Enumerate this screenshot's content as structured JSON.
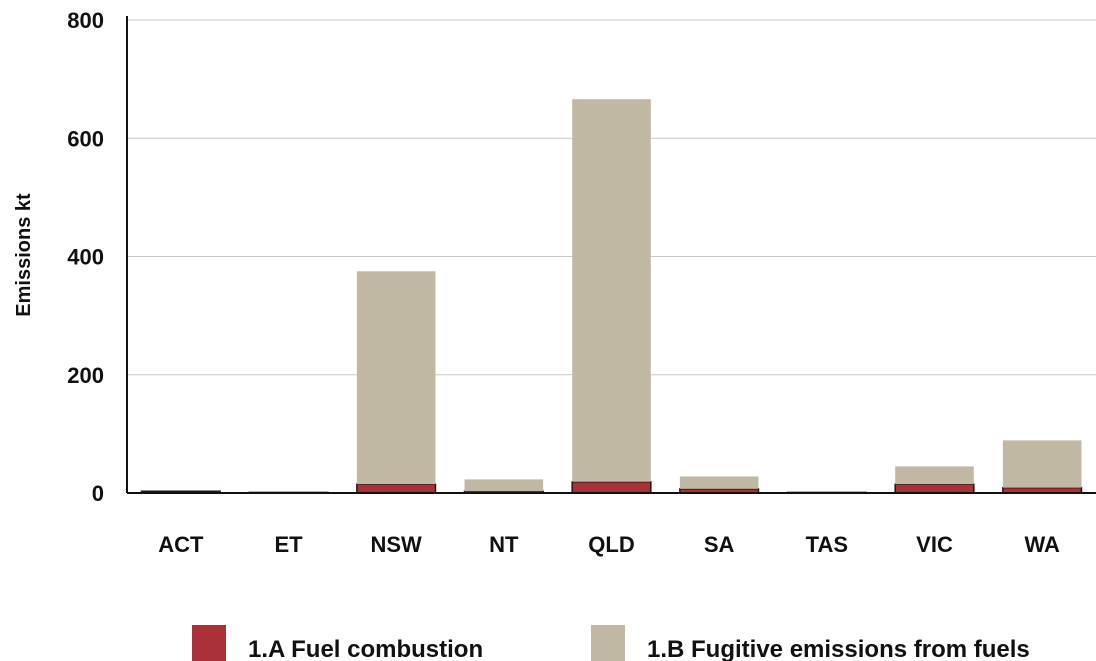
{
  "chart_data": {
    "type": "bar",
    "stacked": true,
    "title": "",
    "xlabel": "",
    "ylabel": "Emissions  kt",
    "ylim": [
      0,
      800
    ],
    "yticks": [
      0,
      200,
      400,
      600,
      800
    ],
    "grid": true,
    "legend_position": "bottom",
    "categories": [
      "ACT",
      "ET",
      "NSW",
      "NT",
      "QLD",
      "SA",
      "TAS",
      "VIC",
      "WA"
    ],
    "series": [
      {
        "name": "1.A Fuel combustion",
        "color": "#a83238",
        "values": [
          3,
          1,
          15,
          3,
          19,
          7,
          1,
          15,
          9
        ]
      },
      {
        "name": "1.B Fugitive emissions from fuels",
        "color": "#c0b8a2",
        "values": [
          0,
          0,
          360,
          20,
          647,
          21,
          0,
          30,
          80
        ]
      }
    ]
  }
}
